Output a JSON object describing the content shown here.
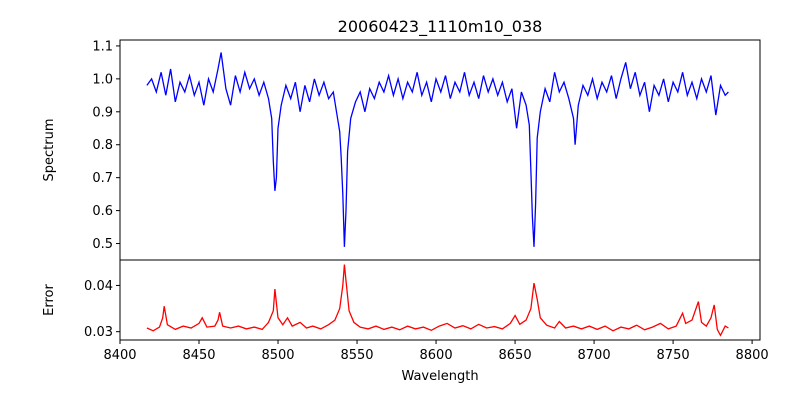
{
  "chart_data": [
    {
      "type": "line",
      "title": "20060423_1110m10_038",
      "ylabel": "Spectrum",
      "xlabel": "",
      "xlim": [
        8400,
        8805
      ],
      "ylim": [
        0.45,
        1.118
      ],
      "yticks": [
        "0.5",
        "0.6",
        "0.7",
        "0.8",
        "0.9",
        "1.0",
        "1.1"
      ],
      "color": "#0000ff",
      "x": [
        8417,
        8420,
        8423,
        8426,
        8429,
        8432,
        8435,
        8438,
        8441,
        8444,
        8447,
        8450,
        8453,
        8456,
        8459,
        8462,
        8464,
        8467,
        8470,
        8473,
        8476,
        8479,
        8482,
        8485,
        8488,
        8491,
        8494,
        8496,
        8497,
        8498,
        8499,
        8500,
        8502,
        8505,
        8508,
        8511,
        8514,
        8517,
        8520,
        8523,
        8526,
        8529,
        8532,
        8535,
        8537,
        8539,
        8540,
        8541,
        8542,
        8543,
        8544,
        8546,
        8549,
        8552,
        8555,
        8558,
        8561,
        8564,
        8567,
        8570,
        8573,
        8576,
        8579,
        8582,
        8585,
        8588,
        8591,
        8594,
        8597,
        8600,
        8603,
        8606,
        8609,
        8612,
        8615,
        8618,
        8621,
        8624,
        8627,
        8630,
        8633,
        8636,
        8639,
        8642,
        8645,
        8648,
        8651,
        8654,
        8657,
        8659,
        8660,
        8661,
        8662,
        8663,
        8664,
        8666,
        8669,
        8672,
        8675,
        8678,
        8681,
        8684,
        8687,
        8688,
        8690,
        8693,
        8696,
        8699,
        8702,
        8705,
        8708,
        8711,
        8714,
        8717,
        8720,
        8723,
        8726,
        8729,
        8732,
        8735,
        8738,
        8741,
        8744,
        8747,
        8750,
        8753,
        8756,
        8759,
        8762,
        8765,
        8768,
        8771,
        8774,
        8777,
        8780,
        8783,
        8785
      ],
      "y": [
        0.98,
        1.0,
        0.96,
        1.02,
        0.95,
        1.03,
        0.93,
        0.99,
        0.96,
        1.01,
        0.95,
        0.99,
        0.92,
        1.0,
        0.96,
        1.03,
        1.08,
        0.97,
        0.92,
        1.01,
        0.96,
        1.02,
        0.97,
        1.0,
        0.95,
        0.99,
        0.94,
        0.88,
        0.75,
        0.66,
        0.7,
        0.85,
        0.92,
        0.98,
        0.94,
        0.99,
        0.9,
        0.98,
        0.93,
        1.0,
        0.95,
        0.99,
        0.94,
        0.96,
        0.9,
        0.84,
        0.76,
        0.65,
        0.49,
        0.6,
        0.78,
        0.88,
        0.93,
        0.96,
        0.9,
        0.97,
        0.94,
        0.99,
        0.96,
        1.01,
        0.95,
        1.0,
        0.94,
        0.99,
        0.96,
        1.02,
        0.95,
        0.99,
        0.93,
        1.0,
        0.96,
        1.01,
        0.94,
        0.99,
        0.96,
        1.02,
        0.95,
        0.99,
        0.94,
        1.01,
        0.96,
        1.0,
        0.95,
        0.99,
        0.93,
        0.97,
        0.85,
        0.96,
        0.92,
        0.86,
        0.72,
        0.58,
        0.49,
        0.62,
        0.82,
        0.9,
        0.97,
        0.93,
        1.02,
        0.96,
        0.99,
        0.94,
        0.88,
        0.8,
        0.92,
        0.98,
        0.95,
        1.0,
        0.94,
        0.99,
        0.96,
        1.01,
        0.94,
        1.0,
        1.05,
        0.97,
        1.02,
        0.95,
        0.99,
        0.9,
        0.98,
        0.95,
        1.0,
        0.93,
        0.99,
        0.96,
        1.02,
        0.95,
        0.99,
        0.94,
        1.0,
        0.96,
        1.01,
        0.89,
        0.98,
        0.95,
        0.96
      ]
    },
    {
      "type": "line",
      "title": "",
      "ylabel": "Error",
      "xlabel": "Wavelength",
      "xlim": [
        8400,
        8805
      ],
      "ylim": [
        0.0282,
        0.0455
      ],
      "xticks": [
        "8400",
        "8450",
        "8500",
        "8550",
        "8600",
        "8650",
        "8700",
        "8750",
        "8800"
      ],
      "yticks": [
        "0.03",
        "0.04"
      ],
      "color": "#ff0000",
      "x": [
        8417,
        8421,
        8425,
        8427,
        8428,
        8430,
        8435,
        8440,
        8445,
        8450,
        8452,
        8455,
        8460,
        8462,
        8463,
        8465,
        8470,
        8475,
        8480,
        8485,
        8490,
        8494,
        8497,
        8498,
        8500,
        8503,
        8506,
        8509,
        8514,
        8518,
        8522,
        8527,
        8532,
        8536,
        8539,
        8541,
        8542,
        8543,
        8545,
        8548,
        8552,
        8557,
        8562,
        8567,
        8572,
        8577,
        8582,
        8587,
        8592,
        8597,
        8602,
        8607,
        8612,
        8617,
        8622,
        8627,
        8632,
        8637,
        8642,
        8647,
        8650,
        8653,
        8657,
        8660,
        8662,
        8664,
        8666,
        8670,
        8675,
        8678,
        8682,
        8687,
        8692,
        8697,
        8702,
        8707,
        8712,
        8717,
        8722,
        8727,
        8732,
        8737,
        8742,
        8747,
        8752,
        8756,
        8758,
        8762,
        8766,
        8768,
        8771,
        8774,
        8776,
        8778,
        8780,
        8783,
        8785
      ],
      "y": [
        0.0308,
        0.0302,
        0.031,
        0.033,
        0.0355,
        0.0315,
        0.0305,
        0.0312,
        0.0308,
        0.0318,
        0.033,
        0.031,
        0.0312,
        0.0325,
        0.0342,
        0.0312,
        0.0308,
        0.0312,
        0.0306,
        0.031,
        0.0305,
        0.032,
        0.0345,
        0.0392,
        0.033,
        0.0315,
        0.033,
        0.0312,
        0.032,
        0.0308,
        0.0312,
        0.0306,
        0.0315,
        0.0325,
        0.035,
        0.04,
        0.0445,
        0.041,
        0.0345,
        0.032,
        0.031,
        0.0306,
        0.0312,
        0.0305,
        0.031,
        0.0304,
        0.0312,
        0.0306,
        0.031,
        0.0303,
        0.0312,
        0.0318,
        0.0308,
        0.0313,
        0.0306,
        0.0316,
        0.0308,
        0.0311,
        0.0306,
        0.0318,
        0.0335,
        0.0316,
        0.0325,
        0.035,
        0.0405,
        0.037,
        0.033,
        0.0314,
        0.0308,
        0.0322,
        0.0308,
        0.0312,
        0.0306,
        0.0312,
        0.0305,
        0.0312,
        0.0302,
        0.031,
        0.0306,
        0.0314,
        0.0304,
        0.031,
        0.0318,
        0.0306,
        0.0312,
        0.034,
        0.0318,
        0.0325,
        0.0365,
        0.032,
        0.0312,
        0.033,
        0.0358,
        0.0305,
        0.0292,
        0.0312,
        0.0308
      ]
    }
  ]
}
